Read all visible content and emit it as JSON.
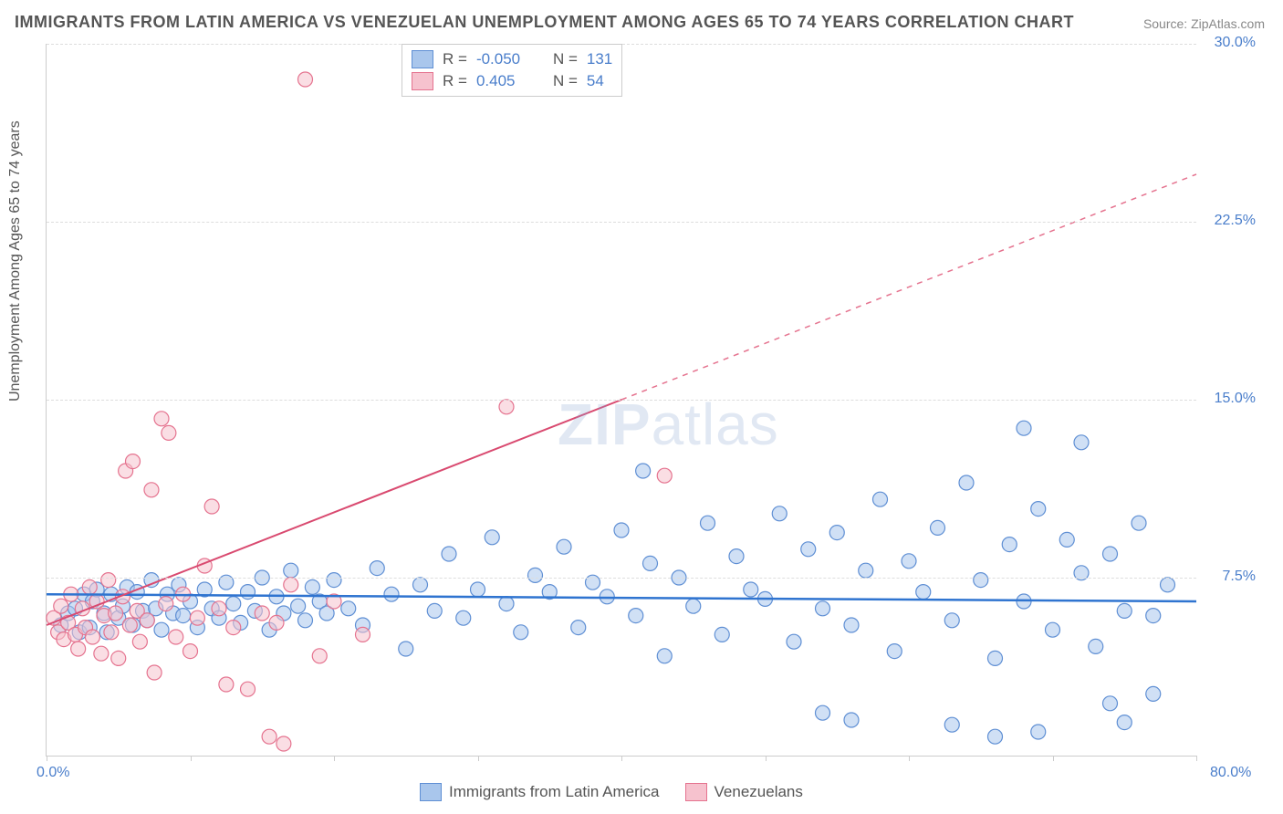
{
  "title": "IMMIGRANTS FROM LATIN AMERICA VS VENEZUELAN UNEMPLOYMENT AMONG AGES 65 TO 74 YEARS CORRELATION CHART",
  "source": "Source: ZipAtlas.com",
  "watermark_a": "ZIP",
  "watermark_b": "atlas",
  "ylabel": "Unemployment Among Ages 65 to 74 years",
  "chart": {
    "type": "scatter",
    "xlim": [
      0,
      80
    ],
    "ylim": [
      0,
      30
    ],
    "xticks": [
      0,
      10,
      20,
      30,
      40,
      50,
      60,
      70,
      80
    ],
    "xtick_labels_shown": {
      "0": "0.0%",
      "80": "80.0%"
    },
    "yticks": [
      7.5,
      15.0,
      22.5,
      30.0
    ],
    "ytick_labels": [
      "7.5%",
      "15.0%",
      "22.5%",
      "30.0%"
    ],
    "grid_color": "#dddddd",
    "background_color": "#ffffff",
    "marker_radius": 8,
    "marker_opacity": 0.55,
    "series": [
      {
        "name": "Immigrants from Latin America",
        "color_fill": "#a9c6ec",
        "color_stroke": "#5f8fd4",
        "R": "-0.050",
        "N": "131",
        "trend": {
          "x1": 0,
          "y1": 6.8,
          "x2": 80,
          "y2": 6.5,
          "color": "#2f74d0",
          "width": 2.5,
          "dash": "none"
        },
        "points": [
          [
            1,
            5.5
          ],
          [
            1.5,
            6
          ],
          [
            2,
            6.2
          ],
          [
            2.3,
            5.2
          ],
          [
            2.6,
            6.8
          ],
          [
            3,
            5.4
          ],
          [
            3.2,
            6.5
          ],
          [
            3.5,
            7
          ],
          [
            4,
            6
          ],
          [
            4.2,
            5.2
          ],
          [
            4.5,
            6.8
          ],
          [
            5,
            5.8
          ],
          [
            5.3,
            6.3
          ],
          [
            5.6,
            7.1
          ],
          [
            6,
            5.5
          ],
          [
            6.3,
            6.9
          ],
          [
            6.7,
            6.1
          ],
          [
            7,
            5.7
          ],
          [
            7.3,
            7.4
          ],
          [
            7.6,
            6.2
          ],
          [
            8,
            5.3
          ],
          [
            8.4,
            6.8
          ],
          [
            8.8,
            6.0
          ],
          [
            9.2,
            7.2
          ],
          [
            9.5,
            5.9
          ],
          [
            10,
            6.5
          ],
          [
            10.5,
            5.4
          ],
          [
            11,
            7.0
          ],
          [
            11.5,
            6.2
          ],
          [
            12,
            5.8
          ],
          [
            12.5,
            7.3
          ],
          [
            13,
            6.4
          ],
          [
            13.5,
            5.6
          ],
          [
            14,
            6.9
          ],
          [
            14.5,
            6.1
          ],
          [
            15,
            7.5
          ],
          [
            15.5,
            5.3
          ],
          [
            16,
            6.7
          ],
          [
            16.5,
            6.0
          ],
          [
            17,
            7.8
          ],
          [
            17.5,
            6.3
          ],
          [
            18,
            5.7
          ],
          [
            18.5,
            7.1
          ],
          [
            19,
            6.5
          ],
          [
            19.5,
            6.0
          ],
          [
            20,
            7.4
          ],
          [
            21,
            6.2
          ],
          [
            22,
            5.5
          ],
          [
            23,
            7.9
          ],
          [
            24,
            6.8
          ],
          [
            25,
            4.5
          ],
          [
            26,
            7.2
          ],
          [
            27,
            6.1
          ],
          [
            28,
            8.5
          ],
          [
            29,
            5.8
          ],
          [
            30,
            7.0
          ],
          [
            31,
            9.2
          ],
          [
            32,
            6.4
          ],
          [
            33,
            5.2
          ],
          [
            34,
            7.6
          ],
          [
            35,
            6.9
          ],
          [
            36,
            8.8
          ],
          [
            37,
            5.4
          ],
          [
            38,
            7.3
          ],
          [
            39,
            6.7
          ],
          [
            40,
            9.5
          ],
          [
            41,
            5.9
          ],
          [
            41.5,
            12
          ],
          [
            42,
            8.1
          ],
          [
            43,
            4.2
          ],
          [
            44,
            7.5
          ],
          [
            45,
            6.3
          ],
          [
            46,
            9.8
          ],
          [
            47,
            5.1
          ],
          [
            48,
            8.4
          ],
          [
            49,
            7.0
          ],
          [
            50,
            6.6
          ],
          [
            51,
            10.2
          ],
          [
            52,
            4.8
          ],
          [
            53,
            8.7
          ],
          [
            54,
            6.2
          ],
          [
            54,
            1.8
          ],
          [
            55,
            9.4
          ],
          [
            56,
            5.5
          ],
          [
            56,
            1.5
          ],
          [
            57,
            7.8
          ],
          [
            58,
            10.8
          ],
          [
            59,
            4.4
          ],
          [
            60,
            8.2
          ],
          [
            61,
            6.9
          ],
          [
            62,
            9.6
          ],
          [
            63,
            5.7
          ],
          [
            63,
            1.3
          ],
          [
            64,
            11.5
          ],
          [
            65,
            7.4
          ],
          [
            66,
            4.1
          ],
          [
            66,
            0.8
          ],
          [
            67,
            8.9
          ],
          [
            68,
            6.5
          ],
          [
            68,
            13.8
          ],
          [
            69,
            10.4
          ],
          [
            69,
            1.0
          ],
          [
            70,
            5.3
          ],
          [
            71,
            9.1
          ],
          [
            72,
            7.7
          ],
          [
            72,
            13.2
          ],
          [
            73,
            4.6
          ],
          [
            74,
            8.5
          ],
          [
            74,
            2.2
          ],
          [
            75,
            6.1
          ],
          [
            75,
            1.4
          ],
          [
            76,
            9.8
          ],
          [
            77,
            5.9
          ],
          [
            77,
            2.6
          ],
          [
            78,
            7.2
          ]
        ]
      },
      {
        "name": "Venezuelans",
        "color_fill": "#f6c2ce",
        "color_stroke": "#e5738f",
        "R": "0.405",
        "N": "54",
        "trend_solid": {
          "x1": 0,
          "y1": 5.5,
          "x2": 40,
          "y2": 15.0,
          "color": "#d94a70",
          "width": 2
        },
        "trend_dash": {
          "x1": 40,
          "y1": 15.0,
          "x2": 80,
          "y2": 24.5,
          "color": "#e5738f",
          "width": 1.5
        },
        "points": [
          [
            0.5,
            5.8
          ],
          [
            0.8,
            5.2
          ],
          [
            1.0,
            6.3
          ],
          [
            1.2,
            4.9
          ],
          [
            1.5,
            5.6
          ],
          [
            1.7,
            6.8
          ],
          [
            2.0,
            5.1
          ],
          [
            2.2,
            4.5
          ],
          [
            2.5,
            6.2
          ],
          [
            2.7,
            5.4
          ],
          [
            3.0,
            7.1
          ],
          [
            3.2,
            5.0
          ],
          [
            3.5,
            6.5
          ],
          [
            3.8,
            4.3
          ],
          [
            4.0,
            5.9
          ],
          [
            4.3,
            7.4
          ],
          [
            4.5,
            5.2
          ],
          [
            4.8,
            6.0
          ],
          [
            5.0,
            4.1
          ],
          [
            5.3,
            6.7
          ],
          [
            5.5,
            12.0
          ],
          [
            5.8,
            5.5
          ],
          [
            6.0,
            12.4
          ],
          [
            6.3,
            6.1
          ],
          [
            6.5,
            4.8
          ],
          [
            7.0,
            5.7
          ],
          [
            7.3,
            11.2
          ],
          [
            7.5,
            3.5
          ],
          [
            8.0,
            14.2
          ],
          [
            8.3,
            6.4
          ],
          [
            8.5,
            13.6
          ],
          [
            9.0,
            5.0
          ],
          [
            9.5,
            6.8
          ],
          [
            10.0,
            4.4
          ],
          [
            10.5,
            5.8
          ],
          [
            11.0,
            8.0
          ],
          [
            11.5,
            10.5
          ],
          [
            12.0,
            6.2
          ],
          [
            12.5,
            3.0
          ],
          [
            13.0,
            5.4
          ],
          [
            14.0,
            2.8
          ],
          [
            15.0,
            6.0
          ],
          [
            15.5,
            0.8
          ],
          [
            16.0,
            5.6
          ],
          [
            16.5,
            0.5
          ],
          [
            17.0,
            7.2
          ],
          [
            18.0,
            28.5
          ],
          [
            19.0,
            4.2
          ],
          [
            20.0,
            6.5
          ],
          [
            22.0,
            5.1
          ],
          [
            32.0,
            14.7
          ],
          [
            43.0,
            11.8
          ]
        ]
      }
    ]
  },
  "legend_bottom": [
    {
      "label": "Immigrants from Latin America",
      "fill": "#a9c6ec",
      "stroke": "#5f8fd4"
    },
    {
      "label": "Venezuelans",
      "fill": "#f6c2ce",
      "stroke": "#e5738f"
    }
  ]
}
